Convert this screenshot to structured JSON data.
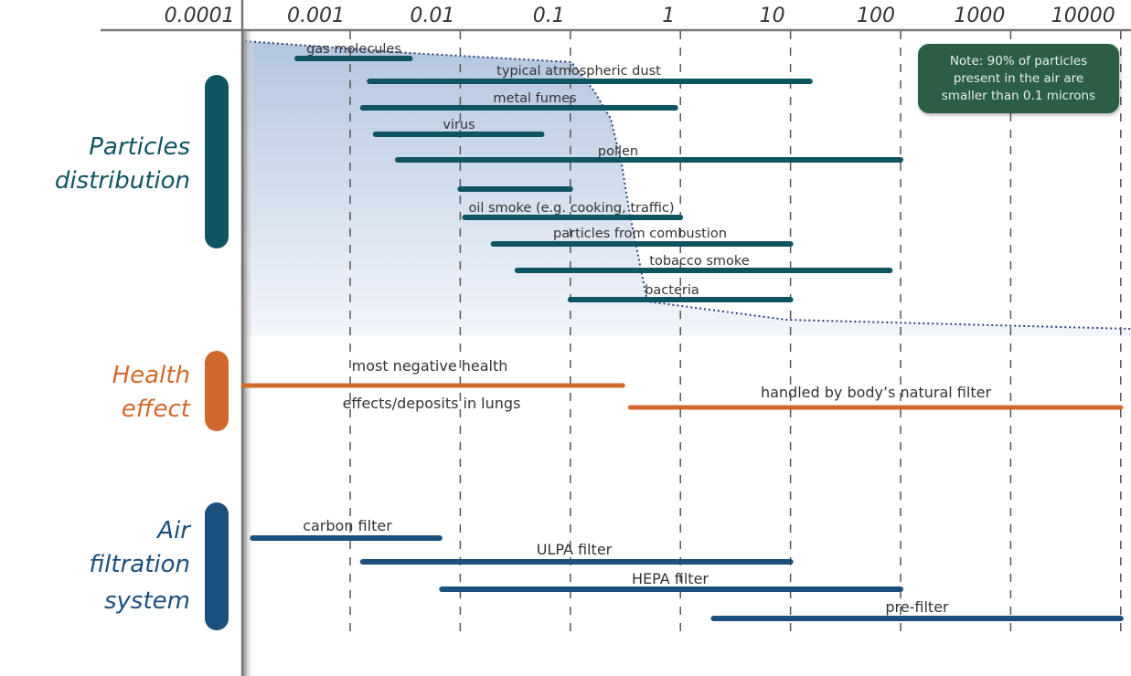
{
  "chart_data": {
    "type": "range-bar",
    "x_scale": "log",
    "x_unit": "microns",
    "xlim": [
      0.0001,
      10000
    ],
    "x_ticks": [
      "0.0001",
      "0.001",
      "0.01",
      "0.1",
      "1",
      "10",
      "100",
      "1000",
      "10000"
    ],
    "grid": true,
    "sections": [
      {
        "title_lines": [
          "Particles",
          "distribution"
        ],
        "color": "#0e5561",
        "bars": [
          {
            "label": "gas molecules",
            "from": 0.00033,
            "to": 0.0035
          },
          {
            "label": "typical atmospheric dust",
            "from": 0.0015,
            "to": 15
          },
          {
            "label": "metal fumes",
            "from": 0.0013,
            "to": 0.9
          },
          {
            "label": "virus",
            "from": 0.0017,
            "to": 0.055
          },
          {
            "label": "pollen",
            "from": 0.0027,
            "to": 100
          },
          {
            "label": "",
            "from": 0.01,
            "to": 0.1
          },
          {
            "label": "oil smoke (e.g. cooking, traffic)",
            "from": 0.011,
            "to": 1
          },
          {
            "label": "particles from combustion",
            "from": 0.02,
            "to": 10
          },
          {
            "label": "tobacco smoke",
            "from": 0.033,
            "to": 80
          },
          {
            "label": "bacteria",
            "from": 0.1,
            "to": 10
          }
        ]
      },
      {
        "title_lines": [
          "Health",
          "effect"
        ],
        "color": "#d2692c",
        "bars": [
          {
            "label": "most negative health",
            "label2": "effects/deposits in lungs",
            "from": 0.0001,
            "to": 0.3
          },
          {
            "label": "handled by body’s natural filter",
            "from": 0.35,
            "to": 10000
          }
        ]
      },
      {
        "title_lines": [
          "Air",
          "filtration",
          "system"
        ],
        "color": "#1b4f7c",
        "bars": [
          {
            "label": "carbon filter",
            "from": 0.00013,
            "to": 0.0065
          },
          {
            "label": "ULPA filter",
            "from": 0.0013,
            "to": 10
          },
          {
            "label": "HEPA filter",
            "from": 0.0068,
            "to": 100
          },
          {
            "label": "pre-filter",
            "from": 2,
            "to": 10000
          }
        ]
      }
    ],
    "annotation": [
      "Note: 90% of particles",
      "present in the air are",
      "smaller than 0.1 microns"
    ]
  }
}
